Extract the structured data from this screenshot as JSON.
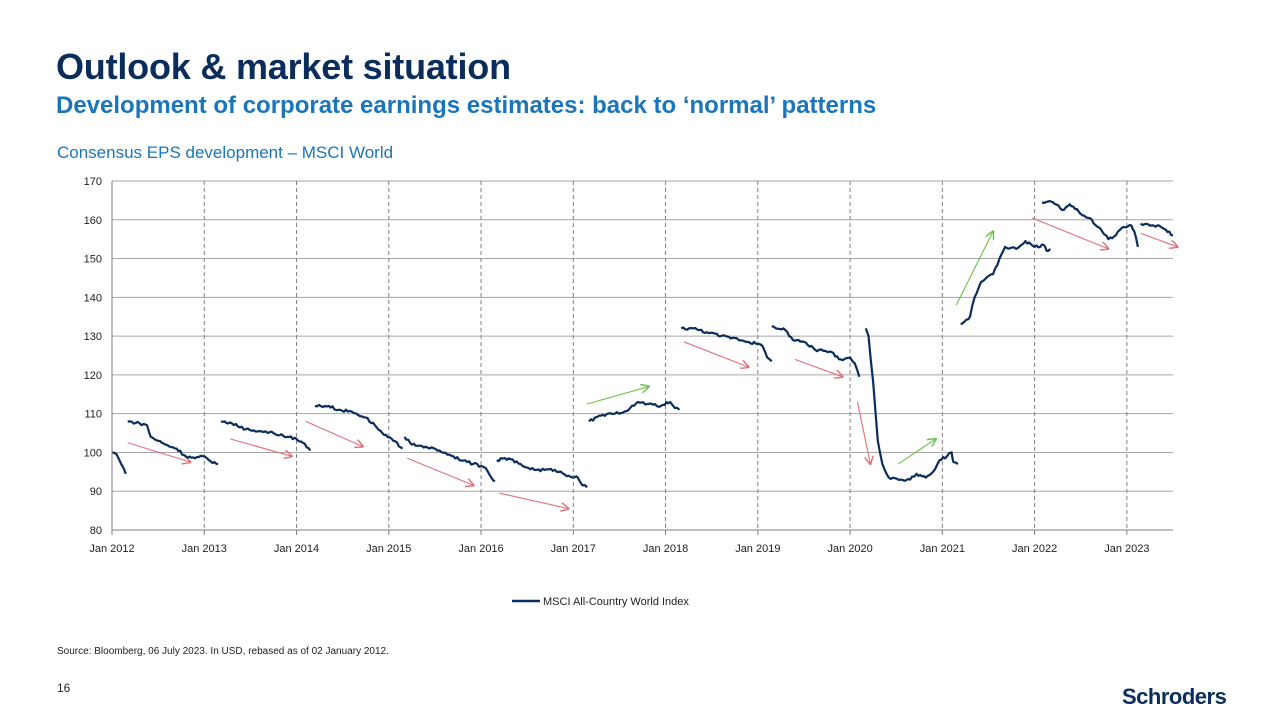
{
  "slide": {
    "title": "Outlook & market situation",
    "subtitle": "Development of corporate earnings estimates: back to ‘normal’ patterns",
    "chart_title": "Consensus  EPS development  – MSCI World",
    "source": "Source: Bloomberg, 06 July 2023. In USD, rebased as of 02 January 2012.",
    "page_number": "16",
    "logo_text": "Schroders"
  },
  "colors": {
    "title": "#0b2d5b",
    "accent": "#1b75bb",
    "series": "#0b2d5b",
    "down_arrow": "#e0707a",
    "up_arrow": "#6cc24a",
    "grid": "#a6a6a6"
  },
  "chart_data": {
    "type": "line",
    "title": "Consensus  EPS development  – MSCI World",
    "xlabel": "",
    "ylabel": "",
    "x_range": [
      2012.0,
      2023.5
    ],
    "ylim": [
      80,
      170
    ],
    "y_ticks": [
      80,
      90,
      100,
      110,
      120,
      130,
      140,
      150,
      160,
      170
    ],
    "x_ticks": [
      {
        "x": 2012,
        "label": "Jan 2012"
      },
      {
        "x": 2013,
        "label": "Jan 2013"
      },
      {
        "x": 2014,
        "label": "Jan 2014"
      },
      {
        "x": 2015,
        "label": "Jan 2015"
      },
      {
        "x": 2016,
        "label": "Jan 2016"
      },
      {
        "x": 2017,
        "label": "Jan 2017"
      },
      {
        "x": 2018,
        "label": "Jan 2018"
      },
      {
        "x": 2019,
        "label": "Jan 2019"
      },
      {
        "x": 2020,
        "label": "Jan 2020"
      },
      {
        "x": 2021,
        "label": "Jan 2021"
      },
      {
        "x": 2022,
        "label": "Jan 2022"
      },
      {
        "x": 2023,
        "label": "Jan 2023"
      }
    ],
    "grid": true,
    "legend": {
      "position": "bottom-center",
      "label": "MSCI All-Country World Index"
    },
    "series": [
      {
        "name": "MSCI All-Country World Index",
        "segments": [
          [
            [
              2012.0,
              100
            ],
            [
              2012.05,
              99.5
            ],
            [
              2012.1,
              97
            ],
            [
              2012.15,
              94.5
            ]
          ],
          [
            [
              2012.17,
              108
            ],
            [
              2012.3,
              107.5
            ],
            [
              2012.38,
              107
            ],
            [
              2012.42,
              104
            ],
            [
              2012.5,
              103
            ],
            [
              2012.58,
              102
            ],
            [
              2012.7,
              101
            ],
            [
              2012.8,
              99
            ],
            [
              2012.9,
              98.5
            ],
            [
              2013.0,
              99
            ],
            [
              2013.05,
              98
            ],
            [
              2013.15,
              97
            ]
          ],
          [
            [
              2013.18,
              108
            ],
            [
              2013.3,
              107.5
            ],
            [
              2013.45,
              106
            ],
            [
              2013.6,
              105.5
            ],
            [
              2013.75,
              105
            ],
            [
              2013.9,
              104
            ],
            [
              2014.0,
              103.5
            ],
            [
              2014.07,
              102.5
            ],
            [
              2014.15,
              100.5
            ]
          ],
          [
            [
              2014.2,
              112
            ],
            [
              2014.35,
              112
            ],
            [
              2014.45,
              111
            ],
            [
              2014.6,
              110.5
            ],
            [
              2014.75,
              109
            ],
            [
              2014.85,
              107
            ],
            [
              2014.95,
              104.5
            ],
            [
              2015.05,
              103
            ],
            [
              2015.15,
              101
            ]
          ],
          [
            [
              2015.17,
              104
            ],
            [
              2015.25,
              102
            ],
            [
              2015.4,
              101.5
            ],
            [
              2015.55,
              100.5
            ],
            [
              2015.7,
              99
            ],
            [
              2015.85,
              97.5
            ],
            [
              2016.0,
              96.5
            ],
            [
              2016.05,
              96
            ],
            [
              2016.15,
              92.5
            ]
          ],
          [
            [
              2016.17,
              98
            ],
            [
              2016.3,
              98.5
            ],
            [
              2016.45,
              96.5
            ],
            [
              2016.6,
              95.5
            ],
            [
              2016.8,
              95.5
            ],
            [
              2016.95,
              94
            ],
            [
              2017.05,
              93.5
            ],
            [
              2017.1,
              91.5
            ],
            [
              2017.15,
              91
            ]
          ],
          [
            [
              2017.17,
              108
            ],
            [
              2017.3,
              109.5
            ],
            [
              2017.45,
              110
            ],
            [
              2017.6,
              111
            ],
            [
              2017.7,
              113
            ],
            [
              2017.8,
              112.5
            ],
            [
              2017.95,
              112
            ],
            [
              2018.05,
              113
            ],
            [
              2018.1,
              111.5
            ],
            [
              2018.15,
              111
            ]
          ],
          [
            [
              2018.17,
              132
            ],
            [
              2018.3,
              132
            ],
            [
              2018.45,
              131
            ],
            [
              2018.6,
              130
            ],
            [
              2018.75,
              129.5
            ],
            [
              2018.9,
              128.5
            ],
            [
              2019.0,
              128
            ],
            [
              2019.05,
              127.5
            ],
            [
              2019.1,
              124.5
            ],
            [
              2019.15,
              123.5
            ]
          ],
          [
            [
              2019.15,
              132.5
            ],
            [
              2019.3,
              131.5
            ],
            [
              2019.38,
              129
            ],
            [
              2019.5,
              128.5
            ],
            [
              2019.62,
              126.5
            ],
            [
              2019.78,
              126
            ],
            [
              2019.9,
              124
            ],
            [
              2020.0,
              124.5
            ],
            [
              2020.05,
              123
            ],
            [
              2020.1,
              119.5
            ]
          ],
          [
            [
              2020.17,
              132
            ],
            [
              2020.2,
              130
            ],
            [
              2020.25,
              118
            ],
            [
              2020.3,
              103
            ],
            [
              2020.35,
              97
            ],
            [
              2020.42,
              93.5
            ],
            [
              2020.55,
              93
            ],
            [
              2020.65,
              93
            ],
            [
              2020.72,
              94.5
            ],
            [
              2020.82,
              93.5
            ],
            [
              2020.9,
              95
            ],
            [
              2020.97,
              98
            ],
            [
              2021.05,
              99
            ],
            [
              2021.1,
              100
            ],
            [
              2021.12,
              97.5
            ],
            [
              2021.17,
              97
            ]
          ],
          [
            [
              2021.2,
              133
            ],
            [
              2021.3,
              135
            ],
            [
              2021.35,
              140
            ],
            [
              2021.42,
              144
            ],
            [
              2021.55,
              146
            ],
            [
              2021.62,
              150
            ],
            [
              2021.68,
              153
            ],
            [
              2021.8,
              152.5
            ],
            [
              2021.9,
              154.5
            ],
            [
              2022.0,
              153
            ],
            [
              2022.1,
              153.5
            ],
            [
              2022.13,
              152
            ],
            [
              2022.17,
              152.5
            ]
          ],
          [
            [
              2022.08,
              164.5
            ],
            [
              2022.2,
              164.5
            ],
            [
              2022.3,
              162.5
            ],
            [
              2022.38,
              164
            ],
            [
              2022.48,
              162
            ],
            [
              2022.58,
              160.5
            ],
            [
              2022.7,
              158
            ],
            [
              2022.8,
              155
            ],
            [
              2022.88,
              156
            ],
            [
              2022.95,
              158
            ],
            [
              2023.05,
              158.5
            ],
            [
              2023.08,
              157
            ],
            [
              2023.12,
              153
            ]
          ],
          [
            [
              2023.15,
              159
            ],
            [
              2023.25,
              158.5
            ],
            [
              2023.35,
              158.5
            ],
            [
              2023.42,
              157.5
            ],
            [
              2023.5,
              156
            ]
          ]
        ]
      }
    ],
    "annotations": {
      "down_arrows": [
        [
          [
            2012.17,
            102.5
          ],
          [
            2012.85,
            97.5
          ]
        ],
        [
          [
            2013.28,
            103.5
          ],
          [
            2013.95,
            99
          ]
        ],
        [
          [
            2014.1,
            108
          ],
          [
            2014.72,
            101.5
          ]
        ],
        [
          [
            2015.2,
            98.5
          ],
          [
            2015.92,
            91.5
          ]
        ],
        [
          [
            2016.2,
            89.5
          ],
          [
            2016.95,
            85.5
          ]
        ],
        [
          [
            2018.2,
            128.5
          ],
          [
            2018.9,
            122
          ]
        ],
        [
          [
            2019.4,
            124
          ],
          [
            2019.92,
            119.5
          ]
        ],
        [
          [
            2020.08,
            113
          ],
          [
            2020.22,
            97
          ]
        ],
        [
          [
            2021.97,
            160.5
          ],
          [
            2022.8,
            152.5
          ]
        ],
        [
          [
            2023.15,
            156.5
          ],
          [
            2023.55,
            153
          ]
        ]
      ],
      "up_arrows": [
        [
          [
            2017.15,
            112.5
          ],
          [
            2017.82,
            117
          ]
        ],
        [
          [
            2020.52,
            97
          ],
          [
            2020.93,
            103.5
          ]
        ],
        [
          [
            2021.15,
            138
          ],
          [
            2021.55,
            157
          ]
        ]
      ]
    }
  }
}
